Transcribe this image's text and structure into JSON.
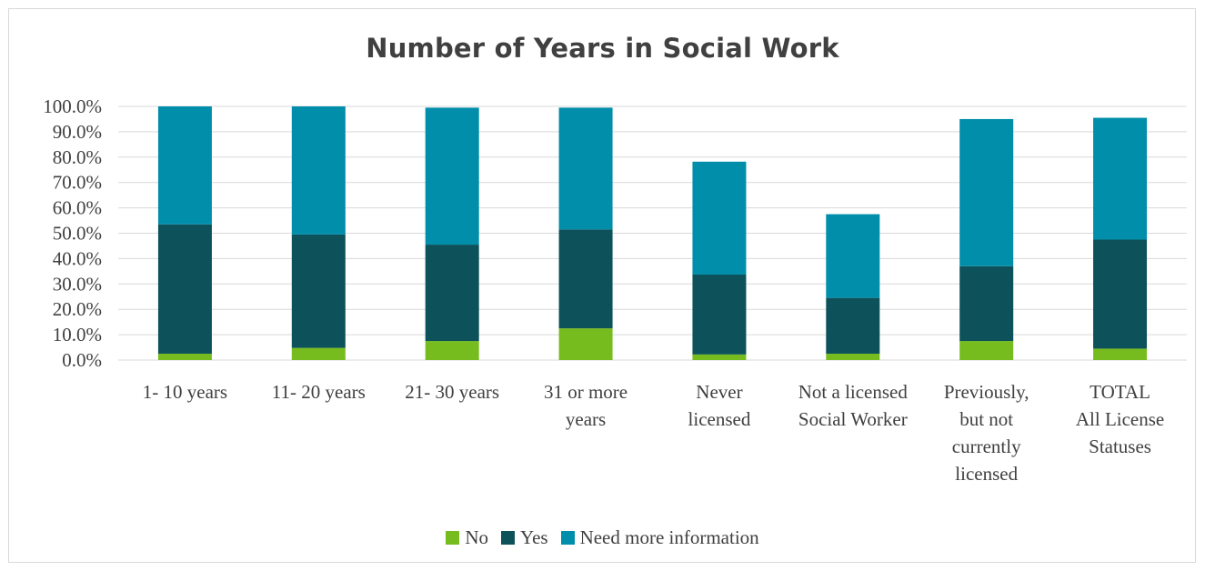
{
  "chart_data": {
    "type": "bar",
    "stacked": true,
    "title": "Number of Years in Social Work",
    "xlabel": "",
    "ylabel": "",
    "ylim": [
      0,
      100
    ],
    "y_ticks": [
      "0.0%",
      "10.0%",
      "20.0%",
      "30.0%",
      "40.0%",
      "50.0%",
      "60.0%",
      "70.0%",
      "80.0%",
      "90.0%",
      "100.0%"
    ],
    "categories": [
      [
        "1- 10 years"
      ],
      [
        "11- 20 years"
      ],
      [
        "21- 30 years"
      ],
      [
        "31 or more",
        "years"
      ],
      [
        "Never",
        "licensed"
      ],
      [
        "Not a licensed",
        "Social Worker"
      ],
      [
        "Previously,",
        "but not",
        "currently",
        "licensed"
      ],
      [
        "TOTAL",
        "All License",
        "Statuses"
      ]
    ],
    "series": [
      {
        "name": "No",
        "color": "#77bc1f",
        "values": [
          2.5,
          4.8,
          7.5,
          12.5,
          2.2,
          2.5,
          7.5,
          4.5
        ]
      },
      {
        "name": "Yes",
        "color": "#0d525a",
        "values": [
          51.0,
          44.7,
          38.0,
          39.0,
          31.5,
          22.0,
          29.5,
          43.0
        ]
      },
      {
        "name": "Need more information",
        "color": "#008eaa",
        "values": [
          46.5,
          50.5,
          54.0,
          48.0,
          44.5,
          33.0,
          58.0,
          48.0
        ]
      }
    ],
    "grid": true,
    "legend_position": "bottom"
  }
}
